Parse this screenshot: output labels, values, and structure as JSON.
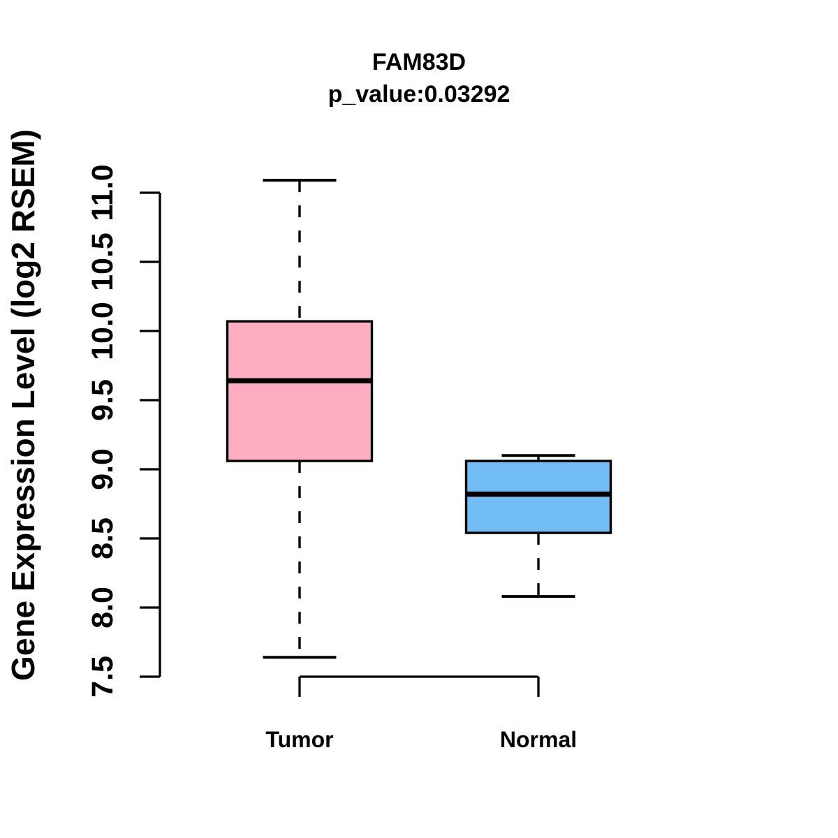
{
  "title": "FAM83D",
  "subtitle": "p_value:0.03292",
  "y_axis": {
    "label": "Gene Expression Level (log2 RSEM)",
    "tick_labels": [
      "7.5",
      "8.0",
      "8.5",
      "9.0",
      "9.5",
      "10.0",
      "10.5",
      "11.0"
    ],
    "range": [
      7.5,
      11.0
    ]
  },
  "x_axis": {
    "categories": [
      "Tumor",
      "Normal"
    ]
  },
  "chart_data": {
    "type": "boxplot",
    "title": "FAM83D",
    "subtitle": "p_value:0.03292",
    "ylabel": "Gene Expression Level (log2 RSEM)",
    "xlabel": "",
    "categories": [
      "Tumor",
      "Normal"
    ],
    "ylim": [
      7.5,
      11.0
    ],
    "ytick_step": 0.5,
    "grid": false,
    "legend": "none",
    "orientation": "vertical",
    "series": [
      {
        "name": "Tumor",
        "whisker_low": 7.64,
        "q1": 9.06,
        "median": 9.64,
        "q3": 10.07,
        "whisker_high": 11.09,
        "fill": "#FEAEC0"
      },
      {
        "name": "Normal",
        "whisker_low": 8.08,
        "q1": 8.54,
        "median": 8.82,
        "q3": 9.06,
        "whisker_high": 9.1,
        "fill": "#72BDF5"
      }
    ],
    "stroke_color": "#000000",
    "background_color": "#FFFFFF"
  }
}
